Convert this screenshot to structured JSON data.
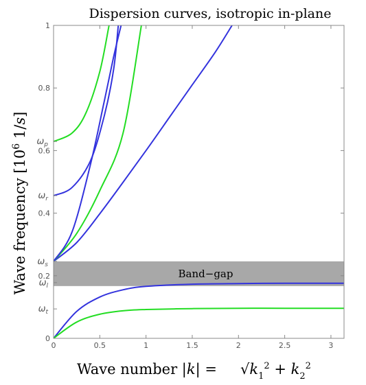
{
  "chart_data": {
    "type": "line",
    "title": "Dispersion curves, isotropic in-plane",
    "xlabel": "Wave number",
    "ylabel": "Wave frequency",
    "xlim": [
      0,
      3.14159
    ],
    "ylim": [
      0,
      1
    ],
    "x_ticks": [
      {
        "value": 0,
        "label": "0"
      },
      {
        "value": 0.5,
        "label": "0.5"
      },
      {
        "value": 1,
        "label": "1"
      },
      {
        "value": 1.5,
        "label": "1.5"
      },
      {
        "value": 2,
        "label": "2"
      },
      {
        "value": 2.5,
        "label": "2.5"
      },
      {
        "value": 3,
        "label": "3"
      }
    ],
    "y_ticks": [
      {
        "value": 0,
        "label": "0"
      },
      {
        "value": 0.2,
        "label": "0.2"
      },
      {
        "value": 0.4,
        "label": "0.4"
      },
      {
        "value": 0.6,
        "label": "0.6"
      },
      {
        "value": 0.8,
        "label": "0.8"
      },
      {
        "value": 1,
        "label": "1"
      }
    ],
    "y_symbol_ticks": [
      {
        "value": 0.629,
        "label": "ω",
        "sub": "p"
      },
      {
        "value": 0.456,
        "label": "ω",
        "sub": "r"
      },
      {
        "value": 0.246,
        "label": "ω",
        "sub": "s"
      },
      {
        "value": 0.178,
        "label": "ω",
        "sub": "l"
      },
      {
        "value": 0.094,
        "label": "ω",
        "sub": "t"
      }
    ],
    "band_gap": {
      "label": "Band−gap",
      "y_from": 0.167,
      "y_to": 0.246,
      "color": "#a8a8a8"
    },
    "series": [
      {
        "color": "#3333dd",
        "points": [
          [
            0,
            0
          ],
          [
            0.25,
            0.086
          ],
          [
            0.5,
            0.132
          ],
          [
            0.75,
            0.155
          ],
          [
            1,
            0.166
          ],
          [
            1.5,
            0.173
          ],
          [
            2,
            0.175
          ],
          [
            2.5,
            0.176
          ],
          [
            3.14,
            0.176
          ]
        ]
      },
      {
        "color": "#22dd22",
        "points": [
          [
            0,
            0
          ],
          [
            0.25,
            0.052
          ],
          [
            0.5,
            0.077
          ],
          [
            0.75,
            0.088
          ],
          [
            1,
            0.092
          ],
          [
            1.5,
            0.095
          ],
          [
            2,
            0.096
          ],
          [
            2.5,
            0.096
          ],
          [
            3.14,
            0.096
          ]
        ]
      },
      {
        "color": "#3333dd",
        "points": [
          [
            0,
            0.246
          ],
          [
            0.25,
            0.306
          ],
          [
            0.5,
            0.398
          ],
          [
            0.75,
            0.498
          ],
          [
            1,
            0.6
          ],
          [
            1.25,
            0.705
          ],
          [
            1.5,
            0.81
          ],
          [
            1.75,
            0.915
          ],
          [
            1.93,
            1.0
          ]
        ]
      },
      {
        "color": "#22dd22",
        "points": [
          [
            0,
            0.246
          ],
          [
            0.25,
            0.335
          ],
          [
            0.5,
            0.472
          ],
          [
            0.75,
            0.654
          ],
          [
            0.95,
            1.0
          ]
        ]
      },
      {
        "color": "#3333dd",
        "points": [
          [
            0,
            0.246
          ],
          [
            0.2,
            0.34
          ],
          [
            0.4,
            0.557
          ],
          [
            0.55,
            0.76
          ],
          [
            0.65,
            0.9
          ],
          [
            0.73,
            1.0
          ]
        ]
      },
      {
        "color": "#3333dd",
        "points": [
          [
            0,
            0.456
          ],
          [
            0.2,
            0.482
          ],
          [
            0.4,
            0.568
          ],
          [
            0.55,
            0.713
          ],
          [
            0.65,
            0.86
          ],
          [
            0.7,
            1.0
          ]
        ]
      },
      {
        "color": "#22dd22",
        "points": [
          [
            0,
            0.629
          ],
          [
            0.2,
            0.656
          ],
          [
            0.35,
            0.72
          ],
          [
            0.5,
            0.852
          ],
          [
            0.6,
            1.0
          ]
        ]
      }
    ]
  }
}
